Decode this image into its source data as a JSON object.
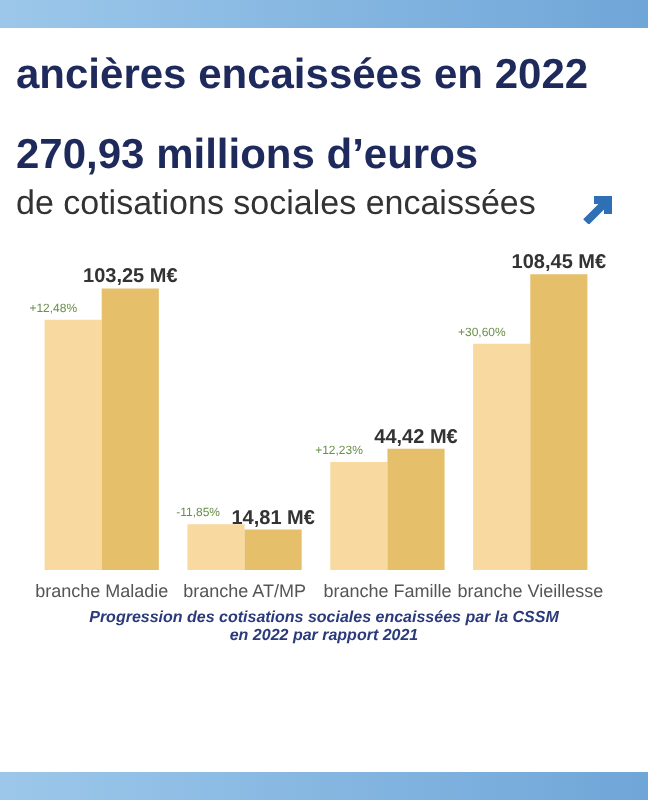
{
  "chart_data": {
    "type": "bar",
    "title": "ancières encaissées en 2022",
    "subtitle": "270,93 millions d’euros",
    "categories": [
      "branche Maladie",
      "branche AT/MP",
      "branche Famille",
      "branche Vieillesse"
    ],
    "series": [
      {
        "color": "#f8d9a0",
        "values": [
          91.8,
          16.8,
          39.6,
          83.0
        ]
      },
      {
        "color": "#e6bf6a",
        "values": [
          103.25,
          14.81,
          44.42,
          108.45
        ],
        "value_labels": [
          "103,25 M€",
          "14,81 M€",
          "44,42 M€",
          "108,45 M€"
        ]
      }
    ],
    "annotations": [
      "de cotisations sociales encaissées",
      {
        "text": "+12,48%",
        "x": "branche Maladie",
        "y": 91.8
      },
      {
        "text": "-11,85%",
        "x": "branche AT/MP",
        "y": 16.8
      },
      {
        "text": "+12,23%",
        "x": "branche Famille",
        "y": 39.6
      },
      {
        "text": "+30,60%",
        "x": "branche Vieillesse",
        "y": 83.0
      },
      "Progression des cotisations sociales encaissées par la CSSM en 2022 par rapport 2021"
    ],
    "legend": false
  }
}
